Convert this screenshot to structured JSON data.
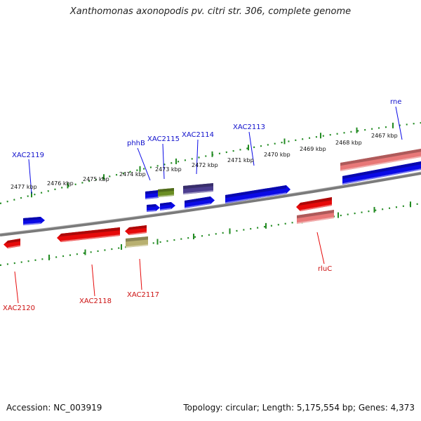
{
  "title": "Xanthomonas axonopodis pv. citri str. 306, complete genome",
  "footer": {
    "accession": "Accession: NC_003919",
    "stats": "Topology: circular; Length: 5,175,554 bp; Genes: 4,373"
  },
  "colors": {
    "plus_strand": "#0a0ae6",
    "minus_strand": "#e60a0a",
    "rna": "#e87878",
    "other": "#6b8e23",
    "pseudo": "#b8b070",
    "misc": "#4b3d8f",
    "backbone": "#7a7a7a",
    "ticks": "#228b22"
  },
  "scale_labels": [
    {
      "id": "2477",
      "label": "2477 kbp"
    },
    {
      "id": "2476",
      "label": "2476 kbp"
    },
    {
      "id": "2475",
      "label": "2475 kbp"
    },
    {
      "id": "2474",
      "label": "2474 kbp"
    },
    {
      "id": "2473",
      "label": "2473 kbp"
    },
    {
      "id": "2472",
      "label": "2472 kbp"
    },
    {
      "id": "2471",
      "label": "2471 kbp"
    },
    {
      "id": "2470",
      "label": "2470 kbp"
    },
    {
      "id": "2469",
      "label": "2469 kbp"
    },
    {
      "id": "2468",
      "label": "2468 kbp"
    },
    {
      "id": "2467",
      "label": "2467 kbp"
    }
  ],
  "gene_labels": [
    {
      "id": "XAC2119",
      "label": "XAC2119",
      "strand": "plus"
    },
    {
      "id": "phhB",
      "label": "phhB",
      "strand": "plus"
    },
    {
      "id": "XAC2115",
      "label": "XAC2115",
      "strand": "plus"
    },
    {
      "id": "XAC2114",
      "label": "XAC2114",
      "strand": "plus"
    },
    {
      "id": "XAC2113",
      "label": "XAC2113",
      "strand": "plus"
    },
    {
      "id": "rne",
      "label": "rne",
      "strand": "plus"
    },
    {
      "id": "XAC2120",
      "label": "XAC2120",
      "strand": "minus"
    },
    {
      "id": "XAC2118",
      "label": "XAC2118",
      "strand": "minus"
    },
    {
      "id": "XAC2117",
      "label": "XAC2117",
      "strand": "minus"
    },
    {
      "id": "rluC",
      "label": "rluC",
      "strand": "minus"
    }
  ]
}
